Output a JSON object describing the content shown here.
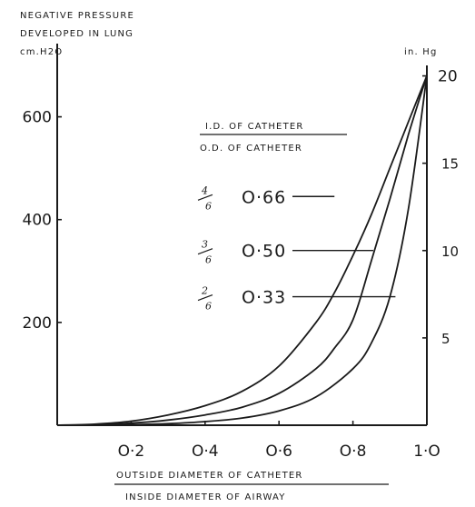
{
  "chart_data": {
    "type": "line",
    "title_lines": [
      "NEGATIVE PRESSURE",
      "DEVELOPED IN LUNG"
    ],
    "ylabel_left": "cm.H2O",
    "ylabel_right": "in. Hg",
    "xlabel_numerator": "OUTSIDE DIAMETER OF CATHETER",
    "xlabel_denominator": "INSIDE DIAMETER OF AIRWAY",
    "legend_numerator": "I.D. OF CATHETER",
    "legend_denominator": "O.D. OF CATHETER",
    "xlim": [
      0,
      1.0
    ],
    "ylim_left": [
      0,
      700
    ],
    "ylim_right": [
      0,
      20.6
    ],
    "x_ticks": [
      {
        "value": 0.2,
        "label": "O·2"
      },
      {
        "value": 0.4,
        "label": "O·4"
      },
      {
        "value": 0.6,
        "label": "O·6"
      },
      {
        "value": 0.8,
        "label": "O·8"
      },
      {
        "value": 1.0,
        "label": "1·O"
      }
    ],
    "y_ticks_left": [
      {
        "value": 200,
        "label": "200"
      },
      {
        "value": 400,
        "label": "400"
      },
      {
        "value": 600,
        "label": "600"
      }
    ],
    "y_ticks_right": [
      {
        "value": 5,
        "label": "5"
      },
      {
        "value": 10,
        "label": "10"
      },
      {
        "value": 15,
        "label": "15"
      },
      {
        "value": 20,
        "label": "20"
      }
    ],
    "series": [
      {
        "name": "O·66",
        "annotation": "4/6",
        "leader_x": 0.75,
        "label_y": 445,
        "x": [
          0.0,
          0.1,
          0.2,
          0.3,
          0.4,
          0.5,
          0.6,
          0.7,
          0.75,
          0.8,
          0.85,
          0.9,
          0.95,
          1.0
        ],
        "y": [
          0,
          2,
          8,
          20,
          38,
          66,
          115,
          200,
          258,
          330,
          410,
          500,
          590,
          680
        ]
      },
      {
        "name": "O·50",
        "annotation": "3/6",
        "leader_x": 0.855,
        "label_y": 340,
        "x": [
          0.0,
          0.1,
          0.2,
          0.3,
          0.4,
          0.5,
          0.6,
          0.7,
          0.75,
          0.8,
          0.85,
          0.9,
          0.95,
          1.0
        ],
        "y": [
          0,
          1,
          4,
          10,
          20,
          35,
          62,
          110,
          150,
          205,
          320,
          440,
          565,
          680
        ]
      },
      {
        "name": "O·33",
        "annotation": "2/6",
        "leader_x": 0.915,
        "label_y": 250,
        "x": [
          0.0,
          0.1,
          0.2,
          0.3,
          0.4,
          0.5,
          0.6,
          0.7,
          0.8,
          0.85,
          0.9,
          0.95,
          1.0
        ],
        "y": [
          0,
          0,
          1,
          3,
          7,
          14,
          28,
          55,
          110,
          160,
          250,
          420,
          680
        ]
      }
    ],
    "grid": false,
    "legend_position": "center"
  }
}
